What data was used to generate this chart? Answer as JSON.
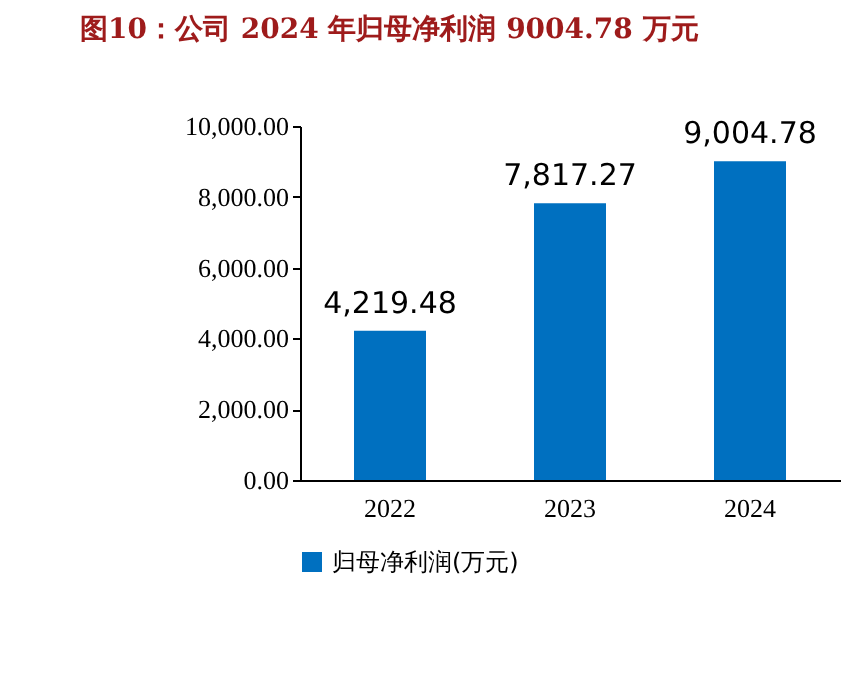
{
  "chart_data": {
    "type": "bar",
    "title": "图10：公司 2024 年归母净利润 9004.78 万元",
    "categories": [
      "2022",
      "2023",
      "2024"
    ],
    "series": [
      {
        "name": "归母净利润(万元)",
        "color": "#0070c0",
        "values": [
          4219.48,
          7817.27,
          9004.78
        ]
      }
    ],
    "value_labels": [
      "4,219.48",
      "7,817.27",
      "9,004.78"
    ],
    "ylim": [
      0,
      10000
    ],
    "yticks": [
      {
        "value": 0,
        "label": "0.00"
      },
      {
        "value": 2000,
        "label": "2,000.00"
      },
      {
        "value": 4000,
        "label": "4,000.00"
      },
      {
        "value": 6000,
        "label": "6,000.00"
      },
      {
        "value": 8000,
        "label": "8,000.00"
      },
      {
        "value": 10000,
        "label": "10,000.00"
      }
    ],
    "legend": "bottom"
  }
}
